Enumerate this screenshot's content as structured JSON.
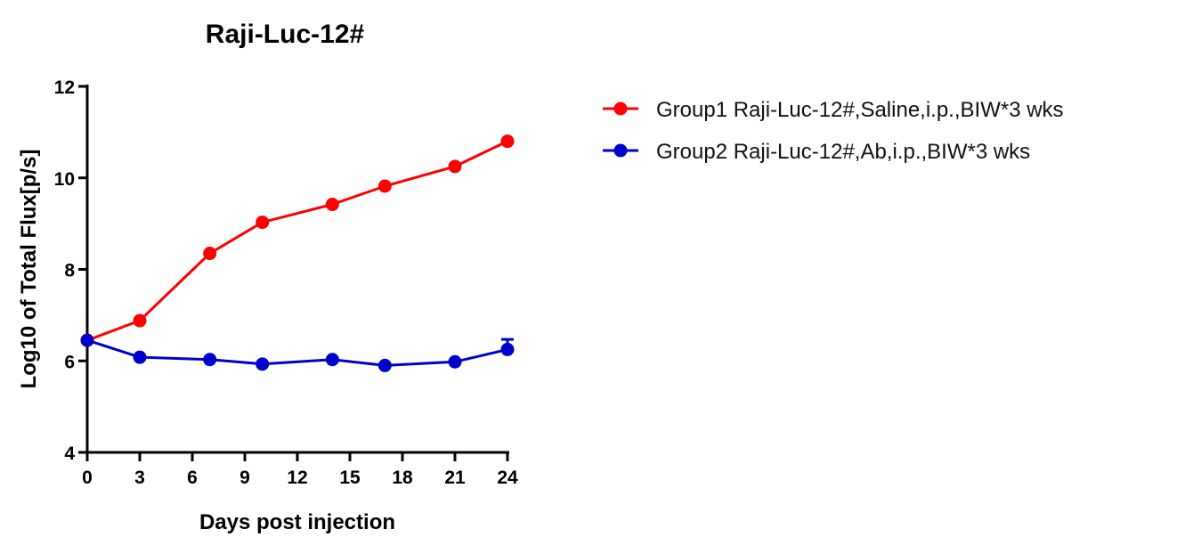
{
  "chart_data": {
    "type": "line",
    "title": "Raji-Luc-12#",
    "xlabel": "Days post injection",
    "ylabel": "Log10 of Total Flux[p/s]",
    "xlim": [
      0,
      24
    ],
    "ylim": [
      4,
      12
    ],
    "xticks": [
      0,
      3,
      6,
      9,
      12,
      15,
      18,
      21,
      24
    ],
    "yticks": [
      4,
      6,
      8,
      10,
      12
    ],
    "grid": false,
    "legend_position": "right",
    "series": [
      {
        "name": "Group1 Raji-Luc-12#,Saline,i.p.,BIW*3 wks",
        "color": "#ff0000",
        "x": [
          0,
          3,
          7,
          10,
          14,
          17,
          21,
          24
        ],
        "y": [
          6.45,
          6.88,
          8.35,
          9.03,
          9.42,
          9.82,
          10.25,
          10.8
        ],
        "error": [
          0,
          0,
          0,
          0,
          0,
          0,
          0,
          0
        ]
      },
      {
        "name": "Group2 Raji-Luc-12#,Ab,i.p.,BIW*3 wks",
        "color": "#0000cc",
        "x": [
          0,
          3,
          7,
          10,
          14,
          17,
          21,
          24
        ],
        "y": [
          6.45,
          6.08,
          6.03,
          5.93,
          6.03,
          5.9,
          5.98,
          6.25
        ],
        "error": [
          0,
          0,
          0,
          0,
          0,
          0,
          0,
          0.22
        ]
      }
    ]
  }
}
